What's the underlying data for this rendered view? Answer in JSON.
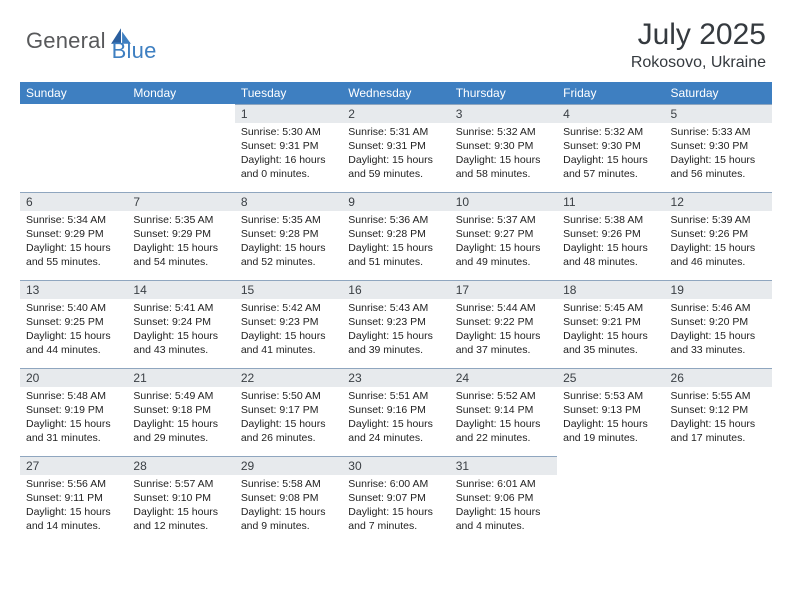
{
  "brand": {
    "text1": "General",
    "text2": "Blue"
  },
  "title": "July 2025",
  "location": "Rokosovo, Ukraine",
  "colors": {
    "header_bg": "#3e7fc1",
    "header_fg": "#ffffff",
    "daynum_bg": "#e7eaed",
    "border": "#8fa6bf",
    "text": "#222222"
  },
  "weekdays": [
    "Sunday",
    "Monday",
    "Tuesday",
    "Wednesday",
    "Thursday",
    "Friday",
    "Saturday"
  ],
  "weeks": [
    [
      null,
      null,
      {
        "n": "1",
        "l": [
          "Sunrise: 5:30 AM",
          "Sunset: 9:31 PM",
          "Daylight: 16 hours",
          "and 0 minutes."
        ]
      },
      {
        "n": "2",
        "l": [
          "Sunrise: 5:31 AM",
          "Sunset: 9:31 PM",
          "Daylight: 15 hours",
          "and 59 minutes."
        ]
      },
      {
        "n": "3",
        "l": [
          "Sunrise: 5:32 AM",
          "Sunset: 9:30 PM",
          "Daylight: 15 hours",
          "and 58 minutes."
        ]
      },
      {
        "n": "4",
        "l": [
          "Sunrise: 5:32 AM",
          "Sunset: 9:30 PM",
          "Daylight: 15 hours",
          "and 57 minutes."
        ]
      },
      {
        "n": "5",
        "l": [
          "Sunrise: 5:33 AM",
          "Sunset: 9:30 PM",
          "Daylight: 15 hours",
          "and 56 minutes."
        ]
      }
    ],
    [
      {
        "n": "6",
        "l": [
          "Sunrise: 5:34 AM",
          "Sunset: 9:29 PM",
          "Daylight: 15 hours",
          "and 55 minutes."
        ]
      },
      {
        "n": "7",
        "l": [
          "Sunrise: 5:35 AM",
          "Sunset: 9:29 PM",
          "Daylight: 15 hours",
          "and 54 minutes."
        ]
      },
      {
        "n": "8",
        "l": [
          "Sunrise: 5:35 AM",
          "Sunset: 9:28 PM",
          "Daylight: 15 hours",
          "and 52 minutes."
        ]
      },
      {
        "n": "9",
        "l": [
          "Sunrise: 5:36 AM",
          "Sunset: 9:28 PM",
          "Daylight: 15 hours",
          "and 51 minutes."
        ]
      },
      {
        "n": "10",
        "l": [
          "Sunrise: 5:37 AM",
          "Sunset: 9:27 PM",
          "Daylight: 15 hours",
          "and 49 minutes."
        ]
      },
      {
        "n": "11",
        "l": [
          "Sunrise: 5:38 AM",
          "Sunset: 9:26 PM",
          "Daylight: 15 hours",
          "and 48 minutes."
        ]
      },
      {
        "n": "12",
        "l": [
          "Sunrise: 5:39 AM",
          "Sunset: 9:26 PM",
          "Daylight: 15 hours",
          "and 46 minutes."
        ]
      }
    ],
    [
      {
        "n": "13",
        "l": [
          "Sunrise: 5:40 AM",
          "Sunset: 9:25 PM",
          "Daylight: 15 hours",
          "and 44 minutes."
        ]
      },
      {
        "n": "14",
        "l": [
          "Sunrise: 5:41 AM",
          "Sunset: 9:24 PM",
          "Daylight: 15 hours",
          "and 43 minutes."
        ]
      },
      {
        "n": "15",
        "l": [
          "Sunrise: 5:42 AM",
          "Sunset: 9:23 PM",
          "Daylight: 15 hours",
          "and 41 minutes."
        ]
      },
      {
        "n": "16",
        "l": [
          "Sunrise: 5:43 AM",
          "Sunset: 9:23 PM",
          "Daylight: 15 hours",
          "and 39 minutes."
        ]
      },
      {
        "n": "17",
        "l": [
          "Sunrise: 5:44 AM",
          "Sunset: 9:22 PM",
          "Daylight: 15 hours",
          "and 37 minutes."
        ]
      },
      {
        "n": "18",
        "l": [
          "Sunrise: 5:45 AM",
          "Sunset: 9:21 PM",
          "Daylight: 15 hours",
          "and 35 minutes."
        ]
      },
      {
        "n": "19",
        "l": [
          "Sunrise: 5:46 AM",
          "Sunset: 9:20 PM",
          "Daylight: 15 hours",
          "and 33 minutes."
        ]
      }
    ],
    [
      {
        "n": "20",
        "l": [
          "Sunrise: 5:48 AM",
          "Sunset: 9:19 PM",
          "Daylight: 15 hours",
          "and 31 minutes."
        ]
      },
      {
        "n": "21",
        "l": [
          "Sunrise: 5:49 AM",
          "Sunset: 9:18 PM",
          "Daylight: 15 hours",
          "and 29 minutes."
        ]
      },
      {
        "n": "22",
        "l": [
          "Sunrise: 5:50 AM",
          "Sunset: 9:17 PM",
          "Daylight: 15 hours",
          "and 26 minutes."
        ]
      },
      {
        "n": "23",
        "l": [
          "Sunrise: 5:51 AM",
          "Sunset: 9:16 PM",
          "Daylight: 15 hours",
          "and 24 minutes."
        ]
      },
      {
        "n": "24",
        "l": [
          "Sunrise: 5:52 AM",
          "Sunset: 9:14 PM",
          "Daylight: 15 hours",
          "and 22 minutes."
        ]
      },
      {
        "n": "25",
        "l": [
          "Sunrise: 5:53 AM",
          "Sunset: 9:13 PM",
          "Daylight: 15 hours",
          "and 19 minutes."
        ]
      },
      {
        "n": "26",
        "l": [
          "Sunrise: 5:55 AM",
          "Sunset: 9:12 PM",
          "Daylight: 15 hours",
          "and 17 minutes."
        ]
      }
    ],
    [
      {
        "n": "27",
        "l": [
          "Sunrise: 5:56 AM",
          "Sunset: 9:11 PM",
          "Daylight: 15 hours",
          "and 14 minutes."
        ]
      },
      {
        "n": "28",
        "l": [
          "Sunrise: 5:57 AM",
          "Sunset: 9:10 PM",
          "Daylight: 15 hours",
          "and 12 minutes."
        ]
      },
      {
        "n": "29",
        "l": [
          "Sunrise: 5:58 AM",
          "Sunset: 9:08 PM",
          "Daylight: 15 hours",
          "and 9 minutes."
        ]
      },
      {
        "n": "30",
        "l": [
          "Sunrise: 6:00 AM",
          "Sunset: 9:07 PM",
          "Daylight: 15 hours",
          "and 7 minutes."
        ]
      },
      {
        "n": "31",
        "l": [
          "Sunrise: 6:01 AM",
          "Sunset: 9:06 PM",
          "Daylight: 15 hours",
          "and 4 minutes."
        ]
      },
      null,
      null
    ]
  ]
}
